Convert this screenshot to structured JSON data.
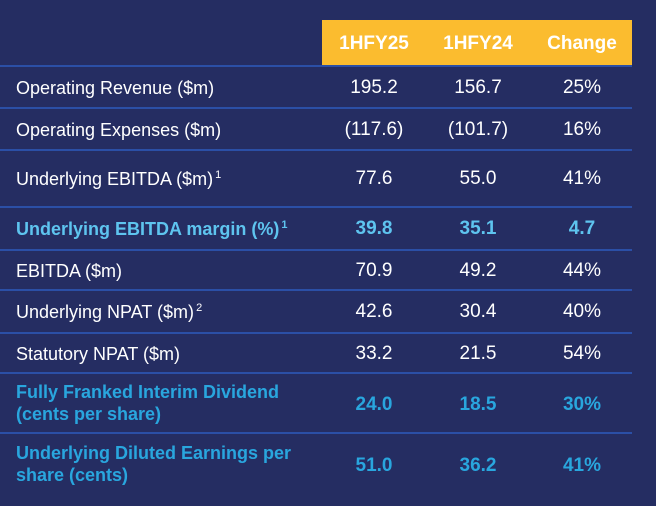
{
  "header": {
    "col1": "1HFY25",
    "col2": "1HFY24",
    "col3": "Change"
  },
  "rows": [
    {
      "label": "Operating Revenue ($m)",
      "sup": "",
      "v1": "195.2",
      "v2": "156.7",
      "v3": "25%"
    },
    {
      "label": "Operating Expenses ($m)",
      "sup": "",
      "v1": "(117.6)",
      "v2": "(101.7)",
      "v3": "16%"
    },
    {
      "label": "Underlying EBITDA ($m)",
      "sup": "1",
      "v1": "77.6",
      "v2": "55.0",
      "v3": "41%"
    },
    {
      "label": "Underlying EBITDA margin (%)",
      "sup": "1",
      "v1": "39.8",
      "v2": "35.1",
      "v3": "4.7"
    },
    {
      "label": "EBITDA ($m)",
      "sup": "",
      "v1": "70.9",
      "v2": "49.2",
      "v3": "44%"
    },
    {
      "label": "Underlying NPAT ($m)",
      "sup": "2",
      "v1": "42.6",
      "v2": "30.4",
      "v3": "40%"
    },
    {
      "label": "Statutory NPAT ($m)",
      "sup": "",
      "v1": "33.2",
      "v2": "21.5",
      "v3": "54%"
    },
    {
      "label": "Fully Franked Interim Dividend",
      "label2": "(cents per share)",
      "v1": "24.0",
      "v2": "18.5",
      "v3": "30%"
    },
    {
      "label": "Underlying Diluted Earnings per",
      "label2": "share (cents)",
      "v1": "51.0",
      "v2": "36.2",
      "v3": "41%"
    }
  ],
  "colors": {
    "background": "#252d62",
    "header": "#fbbc2f",
    "separator": "#2b4fa6",
    "highlight": "#29a6de"
  }
}
